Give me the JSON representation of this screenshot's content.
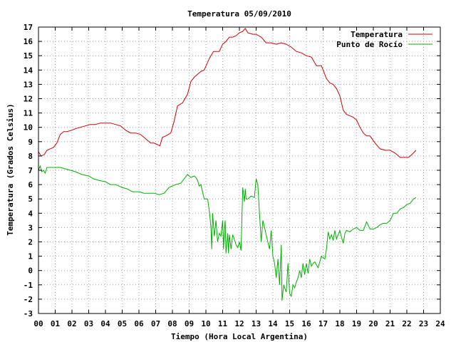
{
  "chart_data": {
    "type": "line",
    "title": "Temperatura 05/09/2010",
    "xlabel": "Tiempo (Hora Local Argentina)",
    "ylabel": "Temperatura (Grados Celsius)",
    "xlim": [
      0,
      24
    ],
    "ylim": [
      -3,
      17
    ],
    "x_tick_labels": [
      "00",
      "01",
      "02",
      "03",
      "04",
      "05",
      "06",
      "07",
      "08",
      "09",
      "10",
      "11",
      "12",
      "13",
      "14",
      "15",
      "16",
      "17",
      "18",
      "19",
      "20",
      "21",
      "22",
      "23",
      "24"
    ],
    "y_ticks": [
      -3,
      -2,
      -1,
      0,
      1,
      2,
      3,
      4,
      5,
      6,
      7,
      8,
      9,
      10,
      11,
      12,
      13,
      14,
      15,
      16,
      17
    ],
    "grid": true,
    "legend_position": "top-right",
    "series": [
      {
        "name": "Temperatura",
        "color": "#d00000",
        "x": [
          0.0,
          0.15,
          0.35,
          0.5,
          0.7,
          0.9,
          1.1,
          1.3,
          1.5,
          1.7,
          2.0,
          2.2,
          2.5,
          2.8,
          3.1,
          3.4,
          3.7,
          4.0,
          4.3,
          4.6,
          4.9,
          5.2,
          5.5,
          5.8,
          6.1,
          6.4,
          6.7,
          6.9,
          7.1,
          7.25,
          7.4,
          7.6,
          7.9,
          8.1,
          8.3,
          8.6,
          8.9,
          9.1,
          9.3,
          9.5,
          9.7,
          9.9,
          10.2,
          10.45,
          10.6,
          10.8,
          11.0,
          11.2,
          11.4,
          11.6,
          11.8,
          12.0,
          12.2,
          12.35,
          12.5,
          12.8,
          13.0,
          13.3,
          13.6,
          13.9,
          14.2,
          14.5,
          14.8,
          15.1,
          15.4,
          15.7,
          16.0,
          16.3,
          16.6,
          16.9,
          17.2,
          17.4,
          17.6,
          17.8,
          18.0,
          18.2,
          18.4,
          18.6,
          18.8,
          19.0,
          19.2,
          19.4,
          19.6,
          19.8,
          20.1,
          20.4,
          20.7,
          21.0,
          21.3,
          21.6,
          21.9,
          22.1,
          22.3,
          22.55
        ],
        "y": [
          8.3,
          8.0,
          8.1,
          8.4,
          8.5,
          8.6,
          8.9,
          9.5,
          9.7,
          9.7,
          9.8,
          9.9,
          10.0,
          10.1,
          10.2,
          10.2,
          10.3,
          10.3,
          10.3,
          10.2,
          10.1,
          9.8,
          9.6,
          9.6,
          9.5,
          9.2,
          8.9,
          8.9,
          8.8,
          8.7,
          9.3,
          9.4,
          9.6,
          10.4,
          11.5,
          11.7,
          12.3,
          13.2,
          13.5,
          13.7,
          13.9,
          14.0,
          14.8,
          15.3,
          15.3,
          15.3,
          15.8,
          16.0,
          16.3,
          16.3,
          16.4,
          16.6,
          16.7,
          16.9,
          16.6,
          16.5,
          16.5,
          16.3,
          15.9,
          15.9,
          15.8,
          15.9,
          15.8,
          15.6,
          15.3,
          15.2,
          15.0,
          14.9,
          14.3,
          14.3,
          13.4,
          13.1,
          13.0,
          12.7,
          12.2,
          11.2,
          10.9,
          10.8,
          10.7,
          10.5,
          10.0,
          9.6,
          9.4,
          9.4,
          8.9,
          8.5,
          8.4,
          8.4,
          8.2,
          7.9,
          7.9,
          7.9,
          8.1,
          8.4
        ]
      },
      {
        "name": "Punto de Rocío",
        "color": "#00b000",
        "x": [
          0.0,
          0.1,
          0.2,
          0.3,
          0.4,
          0.5,
          0.8,
          1.0,
          1.3,
          1.6,
          1.9,
          2.2,
          2.6,
          3.0,
          3.3,
          3.6,
          4.0,
          4.3,
          4.6,
          5.0,
          5.3,
          5.6,
          6.0,
          6.3,
          6.6,
          6.9,
          7.2,
          7.5,
          7.8,
          8.2,
          8.5,
          8.7,
          8.9,
          9.1,
          9.3,
          9.4,
          9.5,
          9.6,
          9.7,
          9.9,
          10.1,
          10.2,
          10.3,
          10.35,
          10.4,
          10.5,
          10.6,
          10.7,
          10.8,
          10.9,
          11.0,
          11.05,
          11.1,
          11.15,
          11.2,
          11.3,
          11.35,
          11.4,
          11.5,
          11.6,
          11.7,
          11.8,
          11.9,
          12.0,
          12.1,
          12.2,
          12.3,
          12.35,
          12.4,
          12.5,
          12.7,
          12.9,
          13.0,
          13.1,
          13.2,
          13.3,
          13.4,
          13.5,
          13.6,
          13.7,
          13.8,
          13.9,
          14.0,
          14.1,
          14.2,
          14.3,
          14.4,
          14.5,
          14.55,
          14.6,
          14.65,
          14.7,
          14.8,
          14.9,
          15.0,
          15.1,
          15.2,
          15.3,
          15.4,
          15.5,
          15.6,
          15.7,
          15.8,
          15.9,
          16.0,
          16.1,
          16.2,
          16.3,
          16.4,
          16.5,
          16.7,
          16.9,
          17.1,
          17.2,
          17.3,
          17.4,
          17.5,
          17.6,
          17.7,
          17.8,
          17.9,
          18.0,
          18.1,
          18.2,
          18.3,
          18.4,
          18.6,
          18.8,
          19.0,
          19.2,
          19.4,
          19.6,
          19.8,
          20.0,
          20.2,
          20.4,
          20.6,
          20.8,
          21.0,
          21.2,
          21.4,
          21.6,
          21.8,
          22.0,
          22.2,
          22.4,
          22.55
        ],
        "y": [
          7.0,
          7.3,
          6.9,
          7.0,
          6.8,
          7.2,
          7.2,
          7.2,
          7.2,
          7.1,
          7.0,
          6.9,
          6.7,
          6.6,
          6.4,
          6.3,
          6.2,
          6.0,
          6.0,
          5.8,
          5.7,
          5.5,
          5.5,
          5.4,
          5.4,
          5.4,
          5.3,
          5.4,
          5.8,
          6.0,
          6.1,
          6.4,
          6.7,
          6.5,
          6.6,
          6.5,
          6.3,
          5.9,
          6.0,
          5.0,
          5.0,
          4.2,
          3.0,
          1.5,
          4.0,
          2.4,
          3.5,
          2.0,
          2.6,
          2.4,
          3.5,
          1.5,
          2.7,
          3.5,
          1.2,
          2.6,
          1.2,
          2.5,
          1.5,
          2.5,
          2.2,
          1.8,
          1.6,
          2.0,
          1.4,
          5.8,
          4.8,
          5.7,
          5.0,
          5.0,
          5.2,
          5.1,
          6.4,
          6.0,
          4.0,
          2.0,
          3.5,
          3.0,
          2.5,
          2.0,
          1.5,
          2.8,
          1.0,
          0.5,
          -0.5,
          0.8,
          -1.0,
          1.8,
          -2.1,
          -1.5,
          -1.0,
          -1.2,
          -1.5,
          0.5,
          -1.6,
          -1.8,
          -1.0,
          -1.2,
          -0.8,
          -0.5,
          0.0,
          -0.5,
          0.5,
          -0.3,
          0.5,
          -0.2,
          0.8,
          0.3,
          0.5,
          0.6,
          0.2,
          1.0,
          0.8,
          1.5,
          2.7,
          2.2,
          2.5,
          2.1,
          2.8,
          2.2,
          2.5,
          2.8,
          2.3,
          1.9,
          2.6,
          2.8,
          2.7,
          2.9,
          3.0,
          2.8,
          2.8,
          3.4,
          2.9,
          2.9,
          3.0,
          3.2,
          3.3,
          3.3,
          3.5,
          4.0,
          4.0,
          4.3,
          4.4,
          4.6,
          4.7,
          5.0,
          5.1
        ]
      }
    ]
  }
}
